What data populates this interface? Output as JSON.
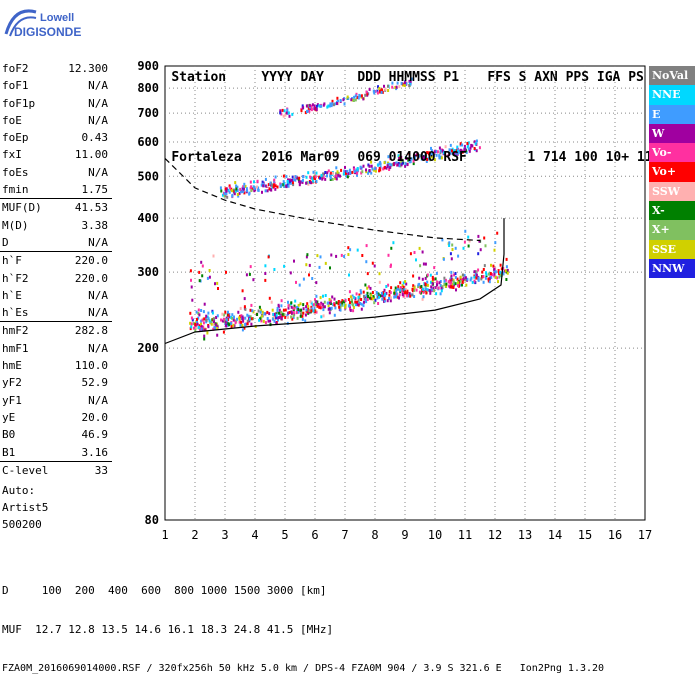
{
  "logo": {
    "line1": "Lowell",
    "line2": "DIGISONDE"
  },
  "header": {
    "labels": [
      "Station",
      "YYYY DAY",
      "DDD HHMMSS P1",
      "FFS S AXN PPS IGA PS"
    ],
    "values": [
      "Fortaleza",
      "2016 Mar09",
      "069 014000 RSF",
      "1 714 100 10+ 11"
    ]
  },
  "params": [
    {
      "group": [
        {
          "name": "foF2",
          "value": "12.300"
        },
        {
          "name": "foF1",
          "value": "N/A"
        },
        {
          "name": "foF1p",
          "value": "N/A"
        },
        {
          "name": "foE",
          "value": "N/A"
        },
        {
          "name": "foEp",
          "value": "0.43"
        },
        {
          "name": "fxI",
          "value": "11.00"
        },
        {
          "name": "foEs",
          "value": "N/A"
        },
        {
          "name": "fmin",
          "value": "1.75"
        }
      ]
    },
    {
      "group": [
        {
          "name": "MUF(D)",
          "value": "41.53"
        },
        {
          "name": "M(D)",
          "value": "3.38"
        },
        {
          "name": "D",
          "value": "N/A"
        }
      ]
    },
    {
      "group": [
        {
          "name": "h`F",
          "value": "220.0"
        },
        {
          "name": "h`F2",
          "value": "220.0"
        },
        {
          "name": "h`E",
          "value": "N/A"
        },
        {
          "name": "h`Es",
          "value": "N/A"
        }
      ]
    },
    {
      "group": [
        {
          "name": "hmF2",
          "value": "282.8"
        },
        {
          "name": "hmF1",
          "value": "N/A"
        },
        {
          "name": "hmE",
          "value": "110.0"
        },
        {
          "name": "yF2",
          "value": "52.9"
        },
        {
          "name": "yF1",
          "value": "N/A"
        },
        {
          "name": "yE",
          "value": "20.0"
        },
        {
          "name": "B0",
          "value": "46.9"
        },
        {
          "name": "B1",
          "value": "3.16"
        }
      ]
    },
    {
      "group": [
        {
          "name": "C-level",
          "value": "33"
        }
      ]
    }
  ],
  "autoscale": {
    "line1": "Auto:",
    "line2": "Artist5",
    "line3": "500200"
  },
  "legend": [
    {
      "label": "NoVal",
      "color": "#808080"
    },
    {
      "label": "NNE",
      "color": "#00d8ff"
    },
    {
      "label": "E",
      "color": "#3f9cff"
    },
    {
      "label": "W",
      "color": "#a000a0"
    },
    {
      "label": "Vo-",
      "color": "#ff30a0"
    },
    {
      "label": "Vo+",
      "color": "#ff0000"
    },
    {
      "label": "SSW",
      "color": "#ffb0b0"
    },
    {
      "label": "X-",
      "color": "#008000"
    },
    {
      "label": "X+",
      "color": "#80c060"
    },
    {
      "label": "SSE",
      "color": "#d0d000"
    },
    {
      "label": "NNW",
      "color": "#2020e0"
    }
  ],
  "footer": {
    "line1": "D     100  200  400  600  800 1000 1500 3000 [km]",
    "line2": "MUF  12.7 12.8 13.5 14.6 16.1 18.3 24.8 41.5 [MHz]",
    "line3": "FZA0M_2016069014000.RSF / 320fx256h 50 kHz 5.0 km / DPS-4 FZA0M 904 / 3.9 S 321.6 E   Ion2Png 1.3.20"
  },
  "chart_data": {
    "type": "scatter",
    "xlim": [
      1,
      17
    ],
    "ylim": [
      80,
      900
    ],
    "x_ticks": [
      "1",
      "2",
      "3",
      "4",
      "5",
      "6",
      "7",
      "8",
      "9",
      "10",
      "11",
      "12",
      "13",
      "14",
      "15",
      "16",
      "17"
    ],
    "y_ticks": [
      "80",
      "200",
      "300",
      "400",
      "500",
      "600",
      "700",
      "800",
      "900"
    ],
    "y_scale": "log",
    "traces": [
      {
        "name": "F layer trace",
        "freq_range": [
          1.8,
          12.4
        ],
        "height_start": 225,
        "height_end": 300
      },
      {
        "name": "second hop",
        "freq_range": [
          2.8,
          11.5
        ],
        "height_start": 460,
        "height_end": 590
      },
      {
        "name": "third hop",
        "freq_range": [
          4.8,
          9.2
        ],
        "height_start": 700,
        "height_end": 830
      }
    ],
    "profile_curve": [
      [
        1.0,
        205
      ],
      [
        2.0,
        218
      ],
      [
        4.0,
        225
      ],
      [
        6.0,
        230
      ],
      [
        8.0,
        236
      ],
      [
        10.0,
        245
      ],
      [
        11.5,
        260
      ],
      [
        12.2,
        280
      ],
      [
        12.3,
        330
      ],
      [
        12.3,
        400
      ]
    ],
    "dashed_curve": [
      [
        1.0,
        550
      ],
      [
        2.0,
        470
      ],
      [
        3.0,
        440
      ],
      [
        4.0,
        420
      ],
      [
        6.0,
        395
      ],
      [
        8.0,
        375
      ],
      [
        10.0,
        360
      ],
      [
        11.5,
        355
      ]
    ],
    "grid": true
  }
}
